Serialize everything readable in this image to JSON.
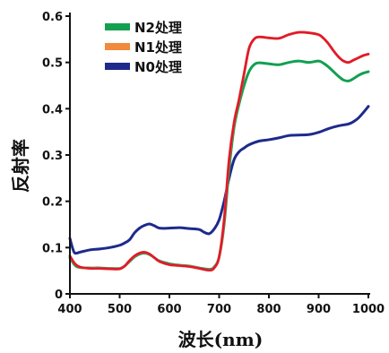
{
  "chart_data": {
    "type": "line",
    "xlabel": "波长(nm)",
    "ylabel": "反射率",
    "xlim": [
      400,
      1000
    ],
    "ylim": [
      0,
      0.6
    ],
    "xticks": [
      400,
      500,
      600,
      700,
      800,
      900,
      1000
    ],
    "yticks": [
      0,
      0.1,
      0.2,
      0.3,
      0.4,
      0.5,
      0.6
    ],
    "ytick_labels": [
      "0",
      "0.1",
      "0.2",
      "0.3",
      "0.4",
      "0.5",
      "0.6"
    ],
    "grid": false,
    "legend_position": "top-left",
    "series": [
      {
        "name": "N2处理",
        "color": "#12a050",
        "points": [
          [
            400,
            0.078
          ],
          [
            410,
            0.062
          ],
          [
            420,
            0.057
          ],
          [
            440,
            0.056
          ],
          [
            460,
            0.056
          ],
          [
            480,
            0.055
          ],
          [
            500,
            0.055
          ],
          [
            510,
            0.06
          ],
          [
            520,
            0.07
          ],
          [
            530,
            0.08
          ],
          [
            540,
            0.086
          ],
          [
            550,
            0.088
          ],
          [
            560,
            0.085
          ],
          [
            570,
            0.078
          ],
          [
            580,
            0.071
          ],
          [
            600,
            0.065
          ],
          [
            620,
            0.062
          ],
          [
            640,
            0.06
          ],
          [
            660,
            0.056
          ],
          [
            680,
            0.053
          ],
          [
            690,
            0.058
          ],
          [
            700,
            0.08
          ],
          [
            710,
            0.15
          ],
          [
            720,
            0.27
          ],
          [
            730,
            0.36
          ],
          [
            740,
            0.41
          ],
          [
            750,
            0.45
          ],
          [
            760,
            0.48
          ],
          [
            770,
            0.495
          ],
          [
            780,
            0.499
          ],
          [
            800,
            0.497
          ],
          [
            820,
            0.495
          ],
          [
            840,
            0.5
          ],
          [
            860,
            0.503
          ],
          [
            880,
            0.5
          ],
          [
            900,
            0.503
          ],
          [
            910,
            0.498
          ],
          [
            920,
            0.49
          ],
          [
            930,
            0.48
          ],
          [
            940,
            0.47
          ],
          [
            950,
            0.462
          ],
          [
            960,
            0.46
          ],
          [
            970,
            0.465
          ],
          [
            980,
            0.472
          ],
          [
            990,
            0.477
          ],
          [
            1000,
            0.48
          ]
        ]
      },
      {
        "name": "N1处理",
        "color": "#f08a3c",
        "points": [
          [
            400,
            0.082
          ],
          [
            410,
            0.065
          ],
          [
            420,
            0.058
          ],
          [
            440,
            0.055
          ],
          [
            460,
            0.055
          ],
          [
            480,
            0.054
          ],
          [
            500,
            0.054
          ],
          [
            510,
            0.06
          ],
          [
            520,
            0.072
          ],
          [
            530,
            0.082
          ],
          [
            540,
            0.088
          ],
          [
            550,
            0.09
          ],
          [
            560,
            0.086
          ],
          [
            570,
            0.078
          ],
          [
            580,
            0.07
          ],
          [
            600,
            0.063
          ],
          [
            620,
            0.061
          ],
          [
            640,
            0.059
          ],
          [
            660,
            0.055
          ],
          [
            680,
            0.051
          ],
          [
            690,
            0.056
          ],
          [
            700,
            0.08
          ],
          [
            710,
            0.16
          ],
          [
            720,
            0.29
          ],
          [
            730,
            0.37
          ],
          [
            740,
            0.42
          ],
          [
            750,
            0.475
          ],
          [
            760,
            0.53
          ],
          [
            770,
            0.55
          ],
          [
            780,
            0.555
          ],
          [
            800,
            0.553
          ],
          [
            820,
            0.552
          ],
          [
            840,
            0.56
          ],
          [
            860,
            0.565
          ],
          [
            880,
            0.564
          ],
          [
            900,
            0.56
          ],
          [
            910,
            0.552
          ],
          [
            920,
            0.54
          ],
          [
            930,
            0.525
          ],
          [
            940,
            0.512
          ],
          [
            950,
            0.503
          ],
          [
            960,
            0.5
          ],
          [
            970,
            0.505
          ],
          [
            980,
            0.51
          ],
          [
            990,
            0.515
          ],
          [
            1000,
            0.518
          ]
        ]
      },
      {
        "name": "N0处理",
        "color": "#1d2a8c",
        "points": [
          [
            400,
            0.12
          ],
          [
            405,
            0.1
          ],
          [
            410,
            0.088
          ],
          [
            420,
            0.09
          ],
          [
            440,
            0.095
          ],
          [
            460,
            0.097
          ],
          [
            480,
            0.1
          ],
          [
            500,
            0.105
          ],
          [
            510,
            0.11
          ],
          [
            520,
            0.117
          ],
          [
            530,
            0.132
          ],
          [
            540,
            0.142
          ],
          [
            550,
            0.148
          ],
          [
            560,
            0.151
          ],
          [
            570,
            0.147
          ],
          [
            580,
            0.142
          ],
          [
            600,
            0.142
          ],
          [
            620,
            0.143
          ],
          [
            640,
            0.141
          ],
          [
            660,
            0.139
          ],
          [
            670,
            0.133
          ],
          [
            680,
            0.13
          ],
          [
            690,
            0.14
          ],
          [
            700,
            0.16
          ],
          [
            710,
            0.2
          ],
          [
            720,
            0.25
          ],
          [
            730,
            0.29
          ],
          [
            740,
            0.307
          ],
          [
            750,
            0.315
          ],
          [
            760,
            0.322
          ],
          [
            780,
            0.33
          ],
          [
            800,
            0.333
          ],
          [
            820,
            0.337
          ],
          [
            840,
            0.342
          ],
          [
            860,
            0.343
          ],
          [
            880,
            0.344
          ],
          [
            900,
            0.349
          ],
          [
            920,
            0.357
          ],
          [
            940,
            0.363
          ],
          [
            960,
            0.367
          ],
          [
            970,
            0.372
          ],
          [
            980,
            0.38
          ],
          [
            990,
            0.392
          ],
          [
            1000,
            0.405
          ]
        ]
      }
    ],
    "draw_order": [
      2,
      0,
      1
    ],
    "overlay_color": "#e01830"
  }
}
